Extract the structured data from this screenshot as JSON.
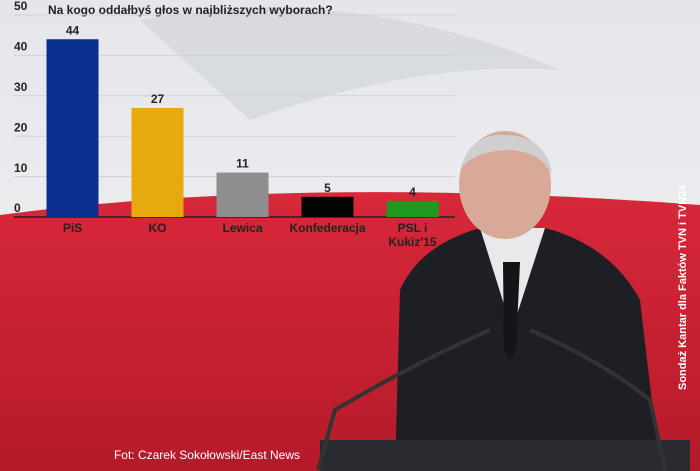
{
  "chart_data": {
    "type": "bar",
    "title": "Na kogo oddałbyś głos w najbliższych wyborach?",
    "categories": [
      "PiS",
      "KO",
      "Lewica",
      "Konfederacja",
      "PSL i Kukiz'15"
    ],
    "values": [
      44,
      27,
      11,
      5,
      4
    ],
    "colors": [
      "#0a2f8f",
      "#e6a90e",
      "#8e8e8e",
      "#050505",
      "#1e9b1e"
    ],
    "ylim": [
      0,
      50
    ],
    "yticks": [
      0,
      10,
      20,
      30,
      40,
      50
    ],
    "grid": true,
    "photo_credit": "Fot: Czarek Sokołowski/East News",
    "source": "Sondaż Kantar dla Faktów TVN i TVN24"
  }
}
